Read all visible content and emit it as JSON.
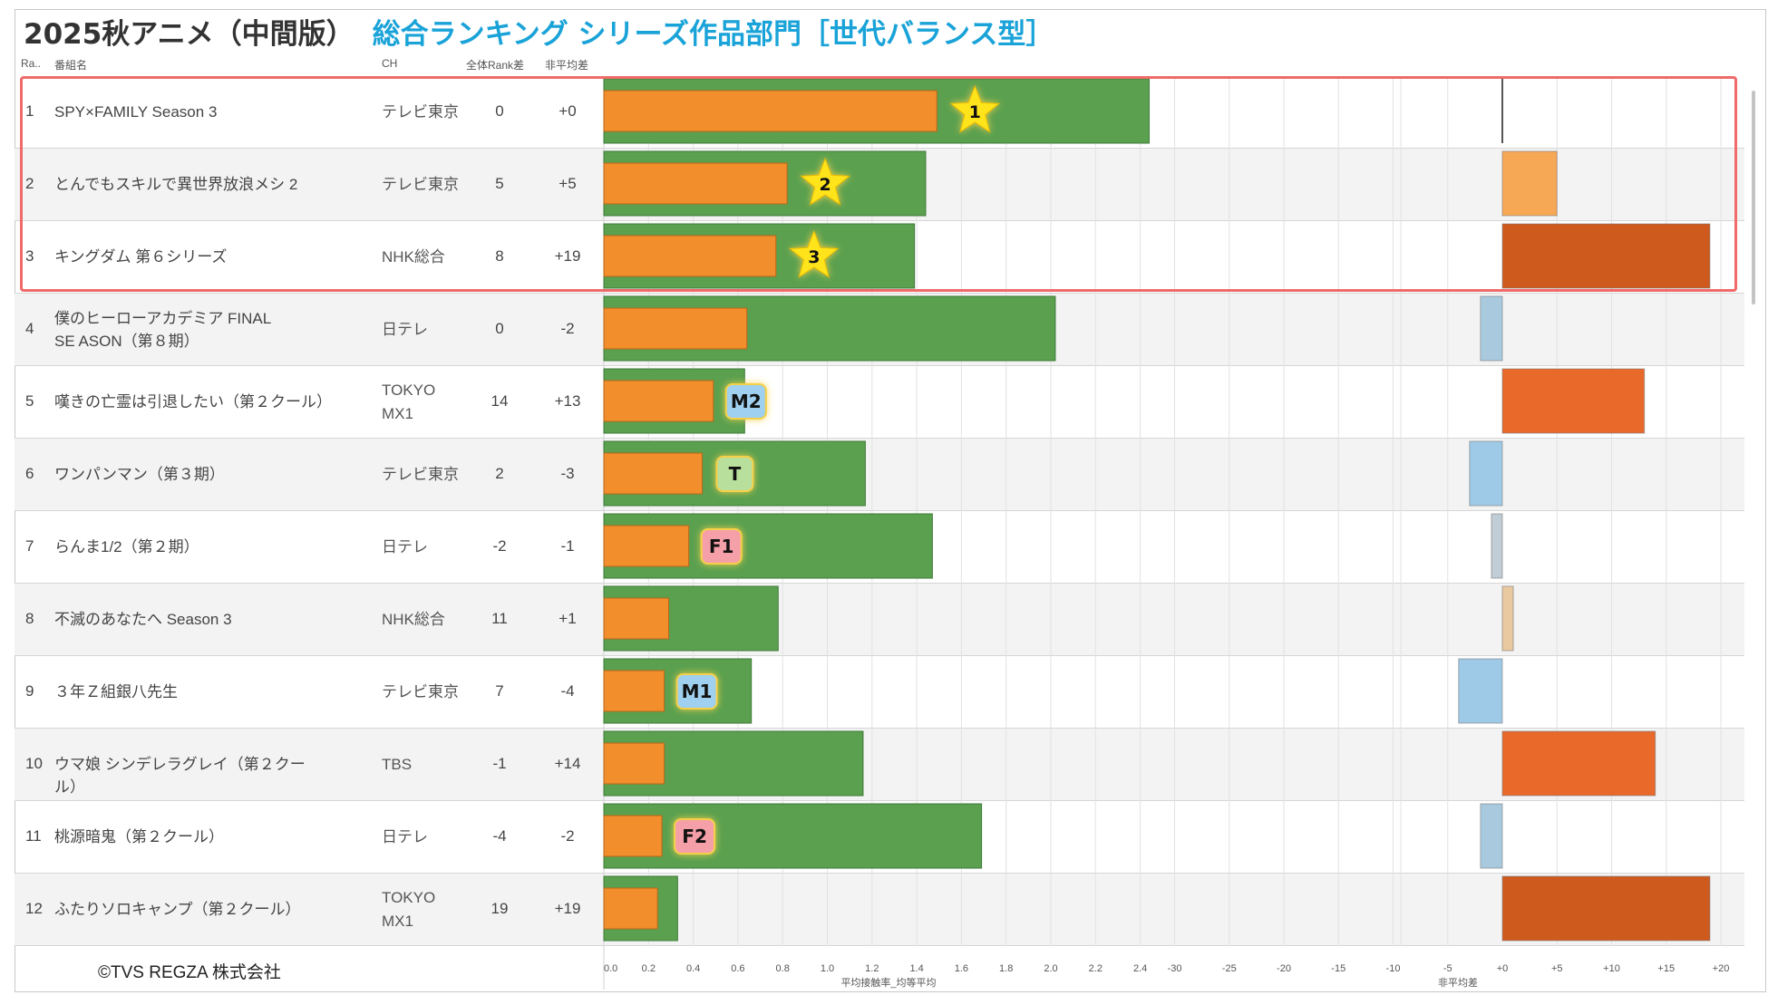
{
  "title": {
    "main": "2025秋アニメ（中間版）",
    "sub": "総合ランキング シリーズ作品部門［世代バランス型］"
  },
  "headers": {
    "rank": "Ra..",
    "name": "番組名",
    "ch": "CH",
    "rank_diff": "全体Rank差",
    "nonavg_diff": "非平均差"
  },
  "rows": [
    {
      "rank": "1",
      "name": "SPY×FAMILY Season 3",
      "ch": "テレビ東京",
      "rank_diff": "0",
      "nonavg_diff": "+0"
    },
    {
      "rank": "2",
      "name": "とんでもスキルで異世界放浪メシ 2",
      "ch": "テレビ東京",
      "rank_diff": "5",
      "nonavg_diff": "+5"
    },
    {
      "rank": "3",
      "name": "キングダム 第６シリーズ",
      "ch": "NHK総合",
      "rank_diff": "8",
      "nonavg_diff": "+19"
    },
    {
      "rank": "4",
      "name": "僕のヒーローアカデミア FINAL SE ASON（第８期）",
      "ch": "日テレ",
      "rank_diff": "0",
      "nonavg_diff": "-2"
    },
    {
      "rank": "5",
      "name": "嘆きの亡霊は引退したい（第２クール）",
      "ch": "TOKYO MX1",
      "rank_diff": "14",
      "nonavg_diff": "+13"
    },
    {
      "rank": "6",
      "name": "ワンパンマン（第３期）",
      "ch": "テレビ東京",
      "rank_diff": "2",
      "nonavg_diff": "-3"
    },
    {
      "rank": "7",
      "name": "らんま1/2（第２期）",
      "ch": "日テレ",
      "rank_diff": "-2",
      "nonavg_diff": "-1"
    },
    {
      "rank": "8",
      "name": "不滅のあなたへ Season 3",
      "ch": "NHK総合",
      "rank_diff": "11",
      "nonavg_diff": "+1"
    },
    {
      "rank": "9",
      "name": "３年Ｚ組銀八先生",
      "ch": "テレビ東京",
      "rank_diff": "7",
      "nonavg_diff": "-4"
    },
    {
      "rank": "10",
      "name": "ウマ娘 シンデレラグレイ（第２クール）",
      "ch": "TBS",
      "rank_diff": "-1",
      "nonavg_diff": "+14"
    },
    {
      "rank": "11",
      "name": "桃源暗鬼（第２クール）",
      "ch": "日テレ",
      "rank_diff": "-4",
      "nonavg_diff": "-2"
    },
    {
      "rank": "12",
      "name": "ふたりソロキャンプ（第２クール）",
      "ch": "TOKYO MX1",
      "rank_diff": "19",
      "nonavg_diff": "+19"
    }
  ],
  "chart_data": [
    {
      "type": "bar",
      "orientation": "horizontal",
      "xlabel": "平均接触率_均等平均",
      "xlim": [
        0,
        2.5
      ],
      "ticks": [
        "0.0",
        "0.2",
        "0.4",
        "0.6",
        "0.8",
        "1.0",
        "1.2",
        "1.4",
        "1.6",
        "1.8",
        "2.0",
        "2.2",
        "2.4"
      ],
      "series": [
        {
          "name": "",
          "color": "#5aa04f",
          "values": [
            2.44,
            1.44,
            1.39,
            2.02,
            0.63,
            1.17,
            1.47,
            0.78,
            0.66,
            1.16,
            1.69,
            0.33
          ]
        },
        {
          "name": "",
          "color": "#f28e2b",
          "values": [
            1.49,
            0.82,
            0.77,
            0.64,
            0.49,
            0.44,
            0.38,
            0.29,
            0.27,
            0.27,
            0.26,
            0.24
          ]
        }
      ],
      "markers": [
        {
          "row": 0,
          "label": "1",
          "shape": "star"
        },
        {
          "row": 1,
          "label": "2",
          "shape": "star"
        },
        {
          "row": 2,
          "label": "3",
          "shape": "star"
        },
        {
          "row": 4,
          "label": "M2",
          "shape": "badge",
          "color": "#9fd0ef"
        },
        {
          "row": 5,
          "label": "T",
          "shape": "badge",
          "color": "#b9df9c"
        },
        {
          "row": 6,
          "label": "F1",
          "shape": "badge",
          "color": "#f5a0a8"
        },
        {
          "row": 8,
          "label": "M1",
          "shape": "badge",
          "color": "#9fd0ef"
        },
        {
          "row": 10,
          "label": "F2",
          "shape": "badge",
          "color": "#f5a0a8"
        }
      ]
    },
    {
      "type": "bar",
      "orientation": "horizontal",
      "xlabel": "非平均差",
      "xlim": [
        -30,
        20
      ],
      "ticks": [
        "-30",
        "-25",
        "-20",
        "-15",
        "-10",
        "-5",
        "+0",
        "+5",
        "+10",
        "+15",
        "+20"
      ],
      "values": [
        0,
        5,
        19,
        -2,
        13,
        -3,
        -1,
        1,
        -4,
        14,
        -2,
        19
      ],
      "colors": [
        "#555555",
        "#f7a855",
        "#cf5a1e",
        "#a9c9df",
        "#e8692a",
        "#9ecae8",
        "#c0ccd6",
        "#e9c9a0",
        "#9ecae8",
        "#e8692a",
        "#a9c9df",
        "#cf5a1e"
      ]
    }
  ],
  "copyright": "©TVS REGZA 株式会社"
}
